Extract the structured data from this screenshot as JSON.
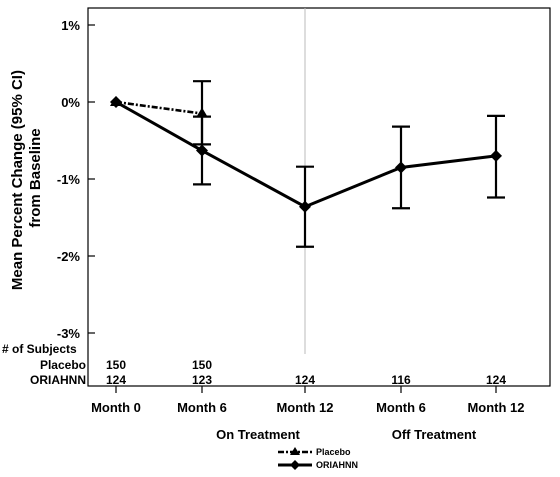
{
  "chart_data": {
    "type": "line",
    "ylabel_lines": [
      "Mean Percent Change (95% CI)",
      "from Baseline"
    ],
    "y_ticks": [
      1,
      0,
      -1,
      -2,
      -3
    ],
    "y_tick_labels": [
      "1%",
      "0%",
      "-1%",
      "-2%",
      "-3%"
    ],
    "ylim": [
      -3.3,
      1.1
    ],
    "categories": [
      "Month 0",
      "Month 6",
      "Month 12",
      "Month 6",
      "Month 12"
    ],
    "groups": [
      {
        "label": "On Treatment",
        "span": [
          1,
          2
        ]
      },
      {
        "label": "Off Treatment",
        "span": [
          3,
          4
        ]
      }
    ],
    "reference_line_after_category": 2,
    "series": [
      {
        "name": "Placebo",
        "style": "dash-dot",
        "marker": "triangle",
        "color": "#000000",
        "x": [
          0,
          1
        ],
        "values": [
          0.0,
          -0.15
        ],
        "ci_lower": [
          null,
          -0.55
        ],
        "ci_upper": [
          null,
          0.27
        ]
      },
      {
        "name": "ORIAHNN",
        "style": "solid",
        "marker": "diamond",
        "color": "#000000",
        "x": [
          0,
          1,
          2,
          3,
          4
        ],
        "values": [
          0.0,
          -0.63,
          -1.36,
          -0.85,
          -0.7
        ],
        "ci_lower": [
          null,
          -1.07,
          -1.88,
          -1.38,
          -1.24
        ],
        "ci_upper": [
          null,
          -0.19,
          -0.84,
          -0.32,
          -0.18
        ]
      }
    ],
    "subjects": {
      "title": "# of Subjects",
      "rows": [
        {
          "label": "Placebo",
          "counts": [
            "150",
            "150",
            "",
            "",
            ""
          ]
        },
        {
          "label": "ORIAHNN",
          "counts": [
            "124",
            "123",
            "124",
            "116",
            "124"
          ]
        }
      ]
    },
    "legend": {
      "position": "bottom-center",
      "entries": [
        "Placebo",
        "ORIAHNN"
      ]
    }
  }
}
